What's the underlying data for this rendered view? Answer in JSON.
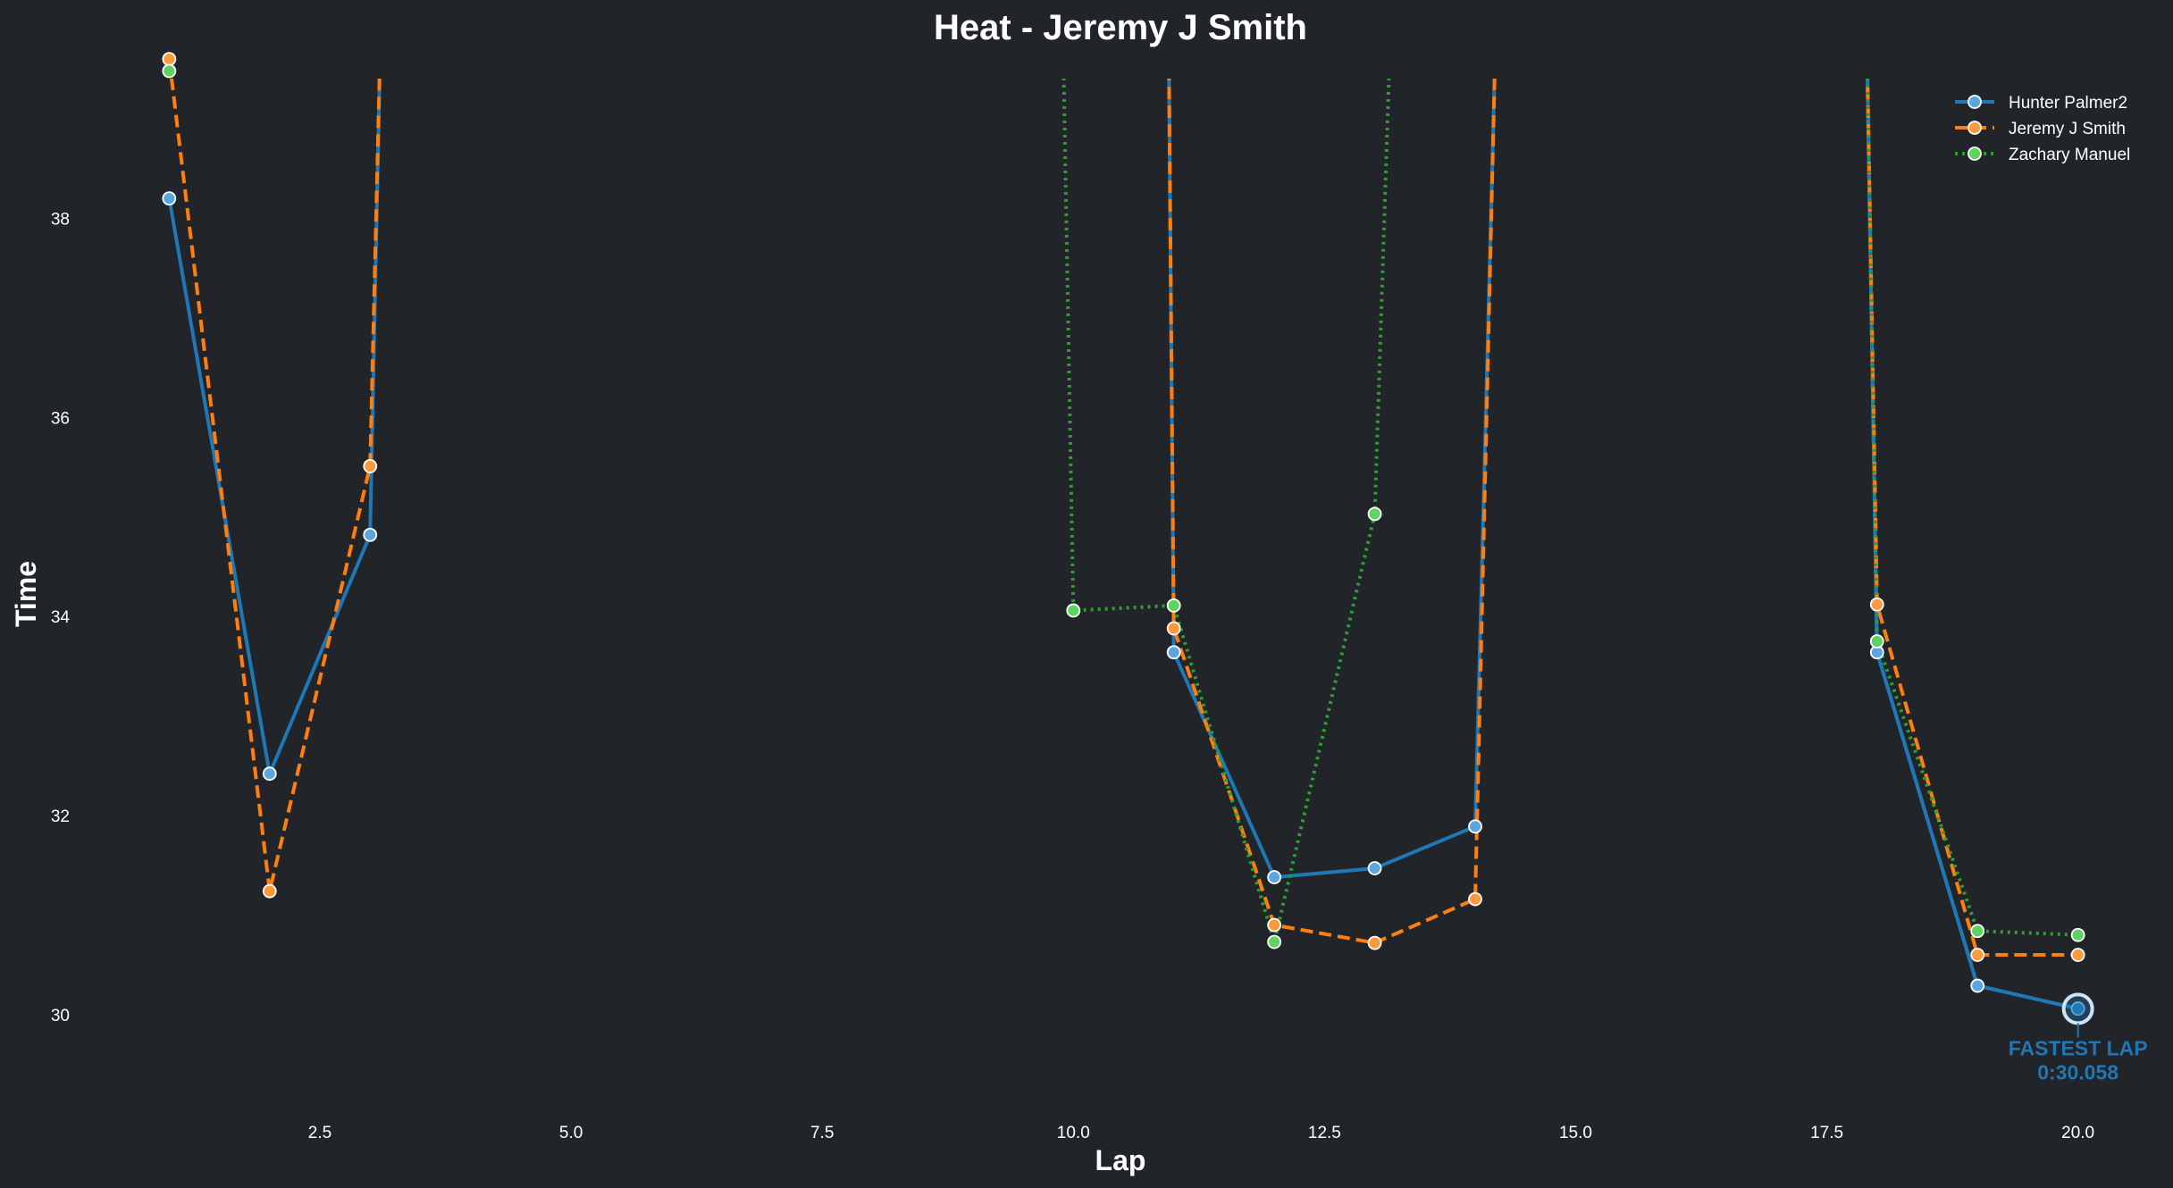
{
  "chart_data": {
    "type": "line",
    "title": "Heat - Jeremy J Smith",
    "xlabel": "Lap",
    "ylabel": "Time",
    "xlim": [
      0.65,
      20.35
    ],
    "ylim": [
      29.2,
      39.7
    ],
    "xticks": [
      2.5,
      5.0,
      7.5,
      10.0,
      12.5,
      15.0,
      17.5,
      20.0
    ],
    "xtick_labels": [
      "2.5",
      "5.0",
      "7.5",
      "10.0",
      "12.5",
      "15.0",
      "17.5",
      "20.0"
    ],
    "yticks": [
      30,
      32,
      34,
      36,
      38
    ],
    "ytick_labels": [
      "30",
      "32",
      "34",
      "36",
      "38"
    ],
    "grid": false,
    "legend_position": "top-right",
    "series": [
      {
        "name": "Hunter Palmer2",
        "color": "#1f77b4",
        "marker_fill": "#5aa6e0",
        "line_style": "solid",
        "x": [
          1,
          2,
          3,
          3.1,
          14.2,
          17.9,
          18,
          19,
          20
        ],
        "y": [
          38.2,
          32.42,
          34.82,
          39.7,
          39.7,
          39.7,
          33.64,
          30.29,
          30.06
        ],
        "markers": [
          true,
          true,
          true,
          false,
          false,
          false,
          true,
          true,
          true
        ],
        "points": [
          {
            "lap": 1,
            "time": 38.2
          },
          {
            "lap": 2,
            "time": 32.42
          },
          {
            "lap": 3,
            "time": 34.82
          },
          {
            "lap": 11,
            "time": 33.64
          },
          {
            "lap": 12,
            "time": 31.38
          },
          {
            "lap": 13,
            "time": 31.47
          },
          {
            "lap": 14,
            "time": 31.89
          },
          {
            "lap": 18,
            "time": 33.64
          },
          {
            "lap": 19,
            "time": 30.29
          },
          {
            "lap": 20,
            "time": 30.06
          }
        ]
      },
      {
        "name": "Jeremy J Smith",
        "color": "#ff7f0e",
        "marker_fill": "#ff9a3c",
        "line_style": "dashed",
        "x": [
          1,
          2,
          3,
          3.1
        ],
        "y": [
          39.6,
          31.24,
          35.51,
          39.7
        ],
        "markers": [
          true,
          true,
          true,
          false
        ],
        "points": [
          {
            "lap": 1,
            "time": 39.6
          },
          {
            "lap": 2,
            "time": 31.24
          },
          {
            "lap": 3,
            "time": 35.51
          },
          {
            "lap": 11,
            "time": 33.88
          },
          {
            "lap": 12,
            "time": 30.9
          },
          {
            "lap": 13,
            "time": 30.72
          },
          {
            "lap": 14,
            "time": 31.16
          },
          {
            "lap": 18,
            "time": 34.12
          },
          {
            "lap": 19,
            "time": 30.6
          },
          {
            "lap": 20,
            "time": 30.6
          }
        ]
      },
      {
        "name": "Zachary Manuel",
        "color": "#2ca02c",
        "marker_fill": "#5fd35f",
        "line_style": "dotted",
        "points": [
          {
            "lap": 1,
            "time": 39.48
          },
          {
            "lap": 10,
            "time": 34.06
          },
          {
            "lap": 11,
            "time": 34.11
          },
          {
            "lap": 12,
            "time": 30.73
          },
          {
            "lap": 13,
            "time": 35.03
          },
          {
            "lap": 18,
            "time": 33.75
          },
          {
            "lap": 19,
            "time": 30.84
          },
          {
            "lap": 20,
            "time": 30.8
          }
        ]
      }
    ],
    "segments": [
      {
        "series": 0,
        "x": [
          10.95,
          11,
          12,
          13,
          14,
          14.2
        ],
        "y": [
          39.7,
          33.64,
          31.38,
          31.47,
          31.89,
          39.7
        ]
      },
      {
        "series": 0,
        "x": [
          17.9,
          18,
          19,
          20
        ],
        "y": [
          39.7,
          33.64,
          30.29,
          30.06
        ]
      },
      {
        "series": 1,
        "x": [
          10.95,
          11,
          12,
          13,
          14,
          14.2
        ],
        "y": [
          39.7,
          33.88,
          30.9,
          30.72,
          31.16,
          39.7
        ]
      },
      {
        "series": 1,
        "x": [
          17.9,
          18,
          19,
          20
        ],
        "y": [
          39.7,
          34.12,
          30.6,
          30.6
        ]
      },
      {
        "series": 2,
        "x": [
          9.9,
          10,
          11,
          12,
          13,
          13.15
        ],
        "y": [
          39.7,
          34.06,
          34.11,
          30.73,
          35.03,
          39.7
        ]
      },
      {
        "series": 2,
        "x": [
          17.9,
          18,
          19,
          20
        ],
        "y": [
          39.7,
          33.75,
          30.84,
          30.8
        ]
      }
    ],
    "annotation": {
      "label": "FASTEST LAP",
      "value": "0:30.058",
      "lap": 20,
      "time": 30.058,
      "color": "#1f77b4"
    }
  }
}
